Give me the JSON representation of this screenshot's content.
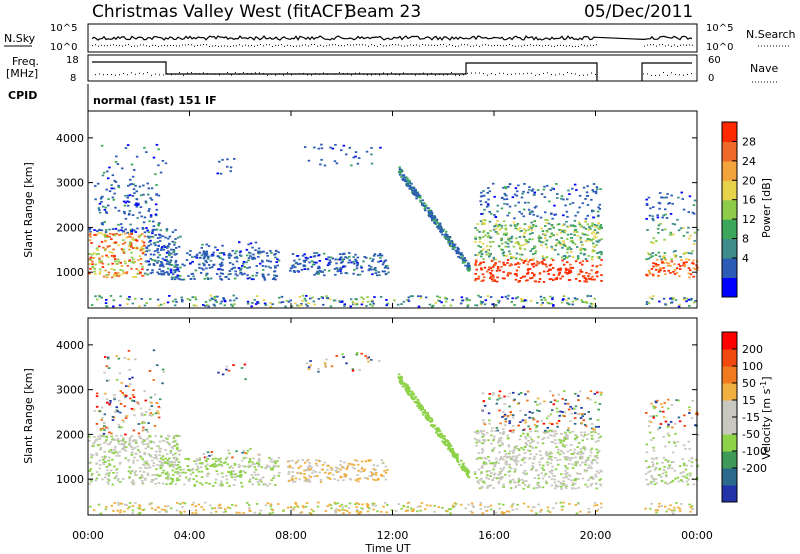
{
  "header": {
    "station": "Christmas Valley West (fitACF)",
    "beam": "Beam 23",
    "date": "05/Dec/2011"
  },
  "top_panels": {
    "nsky_label": "N.Sky",
    "nsearch_label": "N.Search",
    "noise_left_ticks": [
      "10^5",
      "10^0"
    ],
    "noise_right_ticks": [
      "10^5",
      "10^0"
    ],
    "freq_label_1": "Freq.",
    "freq_label_2": "[MHz]",
    "freq_ticks": [
      "18",
      "8"
    ],
    "nave_label": "Nave",
    "nave_ticks": [
      "60",
      "0"
    ],
    "cpid_label": "CPID",
    "cpid_value": "normal (fast) 151 IF"
  },
  "chart_data": [
    {
      "type": "heatmap",
      "name": "power",
      "ylabel": "Slant Range [km]",
      "y_ticks": [
        "4000",
        "3000",
        "2000",
        "1000"
      ],
      "ylim": [
        200,
        4600
      ],
      "colorbar_label": "Power [dB]",
      "colorbar_ticks": [
        "28",
        "24",
        "20",
        "16",
        "12",
        "8",
        "4"
      ],
      "colorbar_colors": [
        "#0000ff",
        "#2b5bb5",
        "#3e8c8c",
        "#3ca65a",
        "#8ecb4a",
        "#e6d34b",
        "#f3a33c",
        "#ef6a2a",
        "#ff2a00"
      ]
    },
    {
      "type": "heatmap",
      "name": "velocity",
      "ylabel": "Slant Range [km]",
      "y_ticks": [
        "4000",
        "3000",
        "2000",
        "1000"
      ],
      "ylim": [
        200,
        4600
      ],
      "colorbar_label": "Velocity [m s",
      "colorbar_label_sup": "-1",
      "colorbar_label_end": "]",
      "colorbar_ticks": [
        "200",
        "100",
        "50",
        "15",
        "-15",
        "-50",
        "-100",
        "-200"
      ],
      "colorbar_colors": [
        "#2233a8",
        "#2b6a8c",
        "#3f9a5a",
        "#8ed24a",
        "#c8c8c0",
        "#c8c8c0",
        "#f0b040",
        "#f07a20",
        "#f04a10",
        "#ff0000"
      ]
    }
  ],
  "x_axis": {
    "ticks": [
      "00:00",
      "04:00",
      "08:00",
      "12:00",
      "16:00",
      "20:00",
      "00:00"
    ],
    "label": "Time UT"
  }
}
